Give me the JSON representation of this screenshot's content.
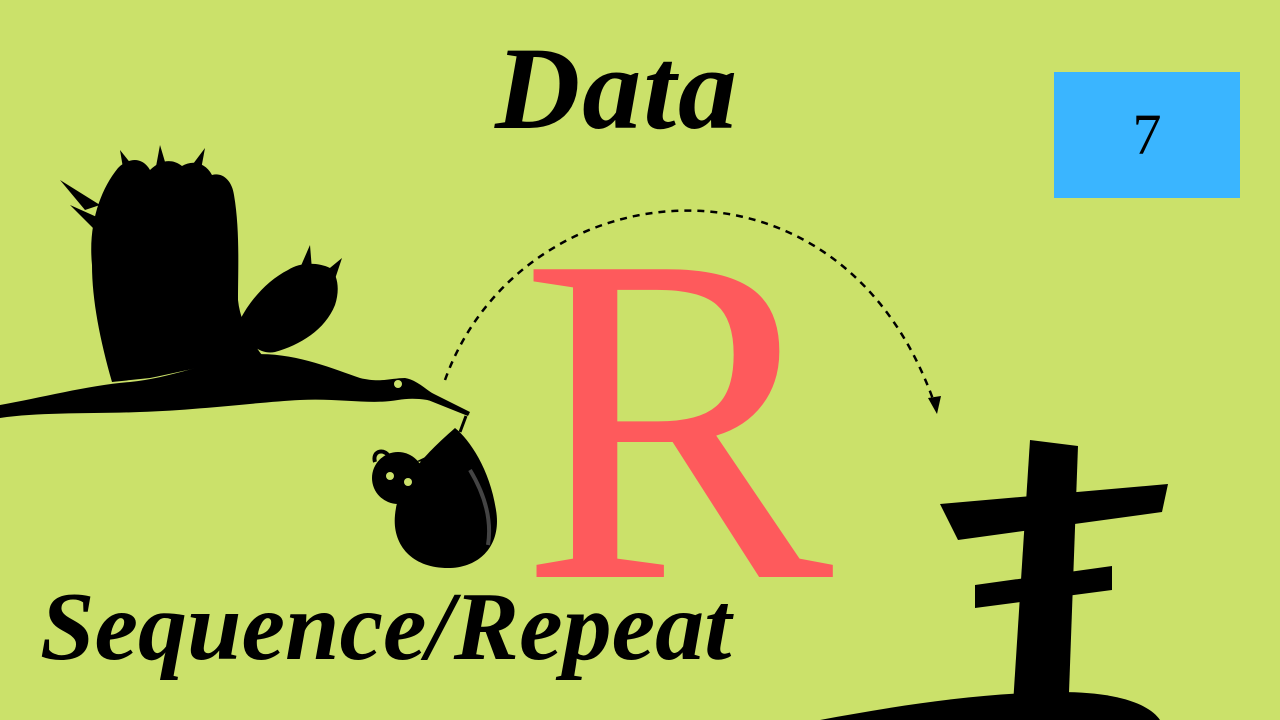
{
  "title": "Data",
  "subtitle": "Sequence/Repeat",
  "episode_number": "7",
  "logo_letter": "R",
  "colors": {
    "background": "#cbe16a",
    "badge": "#3ab5ff",
    "logo": "#fe5a5c",
    "silhouette": "#000000"
  },
  "icons": [
    "stork-icon",
    "baby-bundle-icon",
    "dashed-arrow",
    "grave-cross-icon"
  ]
}
